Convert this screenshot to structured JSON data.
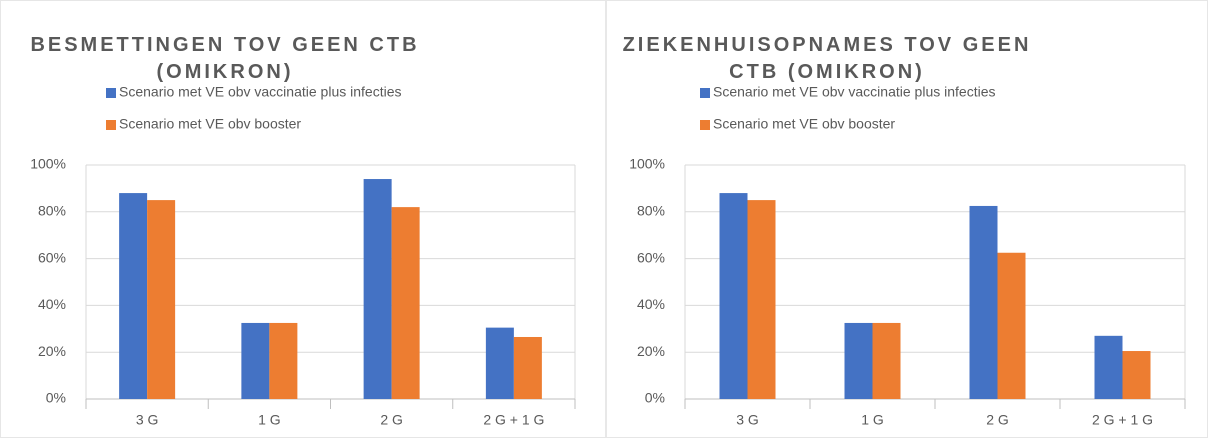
{
  "chart_data": [
    {
      "type": "bar",
      "title": "BESMETTINGEN TOV GEEN CTB (OMIKRON)",
      "categories": [
        "3 G",
        "1 G",
        "2 G",
        "2 G + 1 G"
      ],
      "series": [
        {
          "name": "Scenario met VE obv vaccinatie plus infecties",
          "color": "#4472c4",
          "values": [
            88,
            32.5,
            94,
            30.5
          ]
        },
        {
          "name": "Scenario met VE obv booster",
          "color": "#ed7d31",
          "values": [
            85,
            32.5,
            82,
            26.5
          ]
        }
      ],
      "ylim": [
        0,
        100
      ],
      "yticks": [
        {
          "value": 0,
          "label": "0%"
        },
        {
          "value": 20,
          "label": "20%"
        },
        {
          "value": 40,
          "label": "40%"
        },
        {
          "value": 60,
          "label": "60%"
        },
        {
          "value": 80,
          "label": "80%"
        },
        {
          "value": 100,
          "label": "100%"
        }
      ],
      "grid": true,
      "legend": "top"
    },
    {
      "type": "bar",
      "title": "ZIEKENHUISOPNAMES TOV GEEN CTB (OMIKRON)",
      "categories": [
        "3 G",
        "1 G",
        "2 G",
        "2 G + 1 G"
      ],
      "series": [
        {
          "name": "Scenario met VE obv vaccinatie plus infecties",
          "color": "#4472c4",
          "values": [
            88,
            32.5,
            82.5,
            27
          ]
        },
        {
          "name": "Scenario met VE obv booster",
          "color": "#ed7d31",
          "values": [
            85,
            32.5,
            62.5,
            20.5
          ]
        }
      ],
      "ylim": [
        0,
        100
      ],
      "yticks": [
        {
          "value": 0,
          "label": "0%"
        },
        {
          "value": 20,
          "label": "20%"
        },
        {
          "value": 40,
          "label": "40%"
        },
        {
          "value": 60,
          "label": "60%"
        },
        {
          "value": 80,
          "label": "80%"
        },
        {
          "value": 100,
          "label": "100%"
        }
      ],
      "grid": true,
      "legend": "top"
    }
  ]
}
